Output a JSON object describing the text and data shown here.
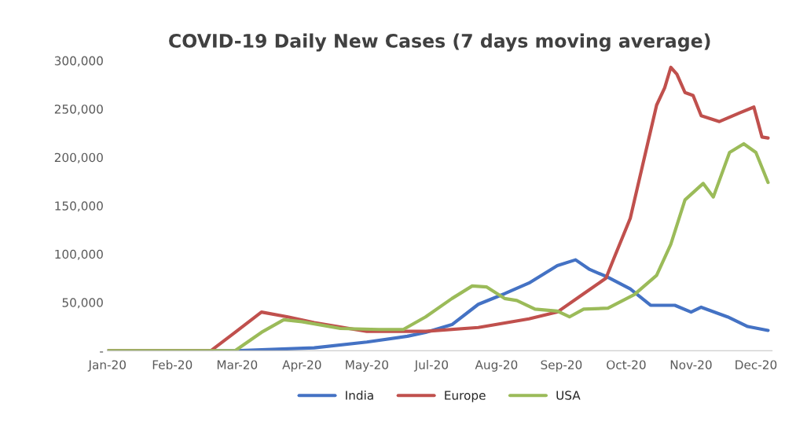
{
  "chart_data": {
    "type": "line",
    "title": "COVID-19 Daily New Cases (7 days moving average)",
    "xlim": [
      "2020-01-23",
      "2020-12-16"
    ],
    "xticks": [
      {
        "value": "2020-01-23",
        "label": "Jan-20"
      },
      {
        "value": "2020-02-24",
        "label": "Feb-20"
      },
      {
        "value": "2020-03-27",
        "label": "Mar-20"
      },
      {
        "value": "2020-04-28",
        "label": "Apr-20"
      },
      {
        "value": "2020-05-30",
        "label": "May-20"
      },
      {
        "value": "2020-07-01",
        "label": "Jul-20"
      },
      {
        "value": "2020-08-02",
        "label": "Aug-20"
      },
      {
        "value": "2020-09-03",
        "label": "Sep-20"
      },
      {
        "value": "2020-10-05",
        "label": "Oct-20"
      },
      {
        "value": "2020-11-06",
        "label": "Nov-20"
      },
      {
        "value": "2020-12-08",
        "label": "Dec-20"
      }
    ],
    "ylim": [
      0,
      300000
    ],
    "yticks": [
      {
        "value": 0,
        "label": "-"
      },
      {
        "value": 50000,
        "label": "50,000"
      },
      {
        "value": 100000,
        "label": "100,000"
      },
      {
        "value": 150000,
        "label": "150,000"
      },
      {
        "value": 200000,
        "label": "200,000"
      },
      {
        "value": 250000,
        "label": "250,000"
      },
      {
        "value": 300000,
        "label": "300,000"
      }
    ],
    "grid": false,
    "legend": "bottom",
    "marker": "none",
    "line_style": "solid",
    "series": [
      {
        "name": "India",
        "color": "#4472c4",
        "x": [
          "2020-01-23",
          "2020-03-26",
          "2020-05-04",
          "2020-05-30",
          "2020-06-19",
          "2020-06-28",
          "2020-07-11",
          "2020-07-24",
          "2020-08-06",
          "2020-08-18",
          "2020-09-01",
          "2020-09-10",
          "2020-09-17",
          "2020-09-26",
          "2020-10-07",
          "2020-10-17",
          "2020-10-29",
          "2020-11-06",
          "2020-11-11",
          "2020-11-24",
          "2020-12-04",
          "2020-12-14"
        ],
        "values": [
          0,
          0,
          3000,
          9000,
          15000,
          19000,
          27000,
          48000,
          59000,
          70000,
          88000,
          94000,
          84000,
          76000,
          64000,
          47000,
          47000,
          40000,
          45000,
          35000,
          25000,
          21000
        ]
      },
      {
        "name": "Europe",
        "color": "#c0504d",
        "x": [
          "2020-01-23",
          "2020-03-14",
          "2020-03-26",
          "2020-04-08",
          "2020-04-21",
          "2020-05-04",
          "2020-05-30",
          "2020-06-28",
          "2020-07-24",
          "2020-08-18",
          "2020-09-01",
          "2020-09-14",
          "2020-09-25",
          "2020-09-29",
          "2020-10-07",
          "2020-10-13",
          "2020-10-20",
          "2020-10-24",
          "2020-10-27",
          "2020-10-30",
          "2020-11-03",
          "2020-11-07",
          "2020-11-11",
          "2020-11-20",
          "2020-11-30",
          "2020-12-07",
          "2020-12-11",
          "2020-12-14"
        ],
        "values": [
          0,
          0,
          19000,
          40000,
          35000,
          29000,
          20000,
          20000,
          24000,
          33000,
          40000,
          59000,
          75000,
          96000,
          137000,
          191000,
          254000,
          272000,
          293000,
          286000,
          267000,
          264000,
          243000,
          237000,
          246000,
          252000,
          221000,
          220000
        ]
      },
      {
        "name": "USA",
        "color": "#9bbb59",
        "x": [
          "2020-01-23",
          "2020-03-26",
          "2020-04-08",
          "2020-04-19",
          "2020-04-28",
          "2020-05-17",
          "2020-06-05",
          "2020-06-17",
          "2020-06-28",
          "2020-07-11",
          "2020-07-21",
          "2020-07-28",
          "2020-08-06",
          "2020-08-12",
          "2020-08-21",
          "2020-09-01",
          "2020-09-07",
          "2020-09-14",
          "2020-09-26",
          "2020-10-09",
          "2020-10-20",
          "2020-10-27",
          "2020-11-03",
          "2020-11-12",
          "2020-11-17",
          "2020-11-25",
          "2020-12-02",
          "2020-12-08",
          "2020-12-14"
        ],
        "values": [
          0,
          0,
          19000,
          32000,
          30000,
          23000,
          22000,
          22000,
          35000,
          54000,
          67000,
          66000,
          54000,
          52000,
          43000,
          41000,
          35000,
          43000,
          44000,
          58000,
          78000,
          110000,
          156000,
          173000,
          159000,
          205000,
          214000,
          205000,
          174000
        ]
      }
    ]
  }
}
